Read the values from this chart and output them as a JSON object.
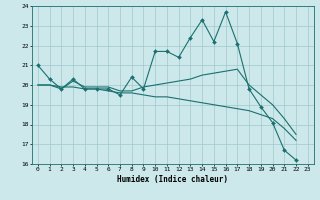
{
  "xlabel": "Humidex (Indice chaleur)",
  "xlim": [
    -0.5,
    23.5
  ],
  "ylim": [
    16,
    24
  ],
  "xticks": [
    0,
    1,
    2,
    3,
    4,
    5,
    6,
    7,
    8,
    9,
    10,
    11,
    12,
    13,
    14,
    15,
    16,
    17,
    18,
    19,
    20,
    21,
    22,
    23
  ],
  "yticks": [
    16,
    17,
    18,
    19,
    20,
    21,
    22,
    23,
    24
  ],
  "background_color": "#cce8ea",
  "grid_color": "#a0c8cc",
  "line_color": "#1a7070",
  "line1": [
    21.0,
    20.3,
    19.8,
    20.3,
    19.8,
    19.8,
    19.8,
    19.5,
    20.4,
    19.8,
    21.7,
    21.7,
    21.4,
    22.4,
    23.3,
    22.2,
    23.7,
    22.1,
    19.8,
    18.9,
    18.1,
    16.7,
    16.2,
    null
  ],
  "line2": [
    20.0,
    20.0,
    19.8,
    20.2,
    19.9,
    19.9,
    19.9,
    19.7,
    19.7,
    19.9,
    20.0,
    20.1,
    20.2,
    20.3,
    20.5,
    20.6,
    20.7,
    20.8,
    20.0,
    19.5,
    19.0,
    18.3,
    17.5,
    null
  ],
  "line3": [
    20.0,
    20.0,
    19.9,
    19.9,
    19.8,
    19.8,
    19.7,
    19.6,
    19.6,
    19.5,
    19.4,
    19.4,
    19.3,
    19.2,
    19.1,
    19.0,
    18.9,
    18.8,
    18.7,
    18.5,
    18.3,
    17.8,
    17.2,
    null
  ]
}
